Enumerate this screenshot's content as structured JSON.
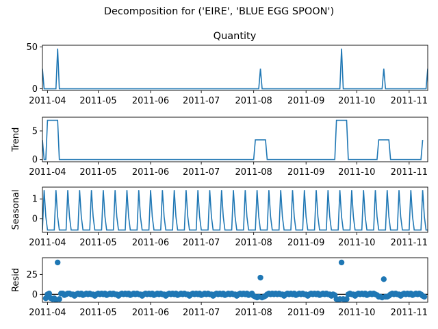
{
  "chart_data": {
    "type": "line",
    "title": "Decomposition for ('EIRE', 'BLUE EGG  SPOON')",
    "x_range": [
      "2011-03-29",
      "2011-11-12"
    ],
    "x_ticks": [
      "2011-04-01",
      "2011-05-01",
      "2011-06-01",
      "2011-07-01",
      "2011-08-01",
      "2011-09-01",
      "2011-10-01",
      "2011-11-01"
    ],
    "x_tick_labels": [
      "2011-04",
      "2011-05",
      "2011-06",
      "2011-07",
      "2011-08",
      "2011-09",
      "2011-10",
      "2011-11"
    ],
    "panels": [
      {
        "name": "observed",
        "title": "Quantity",
        "ylabel": "",
        "kind": "line",
        "ylim": [
          -2,
          52
        ],
        "yticks": [
          0,
          50
        ],
        "points": [
          [
            "2011-03-29",
            24
          ],
          [
            "2011-03-30",
            0
          ],
          [
            "2011-04-06",
            0
          ],
          [
            "2011-04-07",
            48
          ],
          [
            "2011-04-08",
            0
          ],
          [
            "2011-08-04",
            0
          ],
          [
            "2011-08-05",
            24
          ],
          [
            "2011-08-06",
            0
          ],
          [
            "2011-09-21",
            0
          ],
          [
            "2011-09-22",
            48
          ],
          [
            "2011-09-23",
            0
          ],
          [
            "2011-10-16",
            0
          ],
          [
            "2011-10-17",
            24
          ],
          [
            "2011-10-18",
            0
          ],
          [
            "2011-11-11",
            0
          ],
          [
            "2011-11-12",
            24
          ]
        ]
      },
      {
        "name": "trend",
        "title": "",
        "ylabel": "Trend",
        "kind": "line",
        "ylim": [
          -0.4,
          7.4
        ],
        "yticks": [
          0,
          5
        ],
        "points": [
          [
            "2011-03-29",
            3.43
          ],
          [
            "2011-03-30",
            0
          ],
          [
            "2011-03-31",
            0
          ],
          [
            "2011-04-01",
            6.86
          ],
          [
            "2011-04-07",
            6.86
          ],
          [
            "2011-04-08",
            0
          ],
          [
            "2011-08-01",
            0
          ],
          [
            "2011-08-02",
            3.43
          ],
          [
            "2011-08-08",
            3.43
          ],
          [
            "2011-08-09",
            0
          ],
          [
            "2011-09-18",
            0
          ],
          [
            "2011-09-19",
            6.86
          ],
          [
            "2011-09-25",
            6.86
          ],
          [
            "2011-09-26",
            0
          ],
          [
            "2011-10-13",
            0
          ],
          [
            "2011-10-14",
            3.43
          ],
          [
            "2011-10-20",
            3.43
          ],
          [
            "2011-10-21",
            0
          ],
          [
            "2011-11-08",
            0
          ],
          [
            "2011-11-09",
            3.43
          ]
        ]
      },
      {
        "name": "seasonal",
        "title": "",
        "ylabel": "Seasonal",
        "kind": "line",
        "ylim": [
          -0.7,
          1.6
        ],
        "yticks": [
          0,
          1
        ],
        "period_days": 7,
        "pattern": [
          -0.58,
          1.45,
          0.1,
          -0.58,
          -0.58,
          -0.58,
          -0.58
        ],
        "start": "2011-03-29",
        "end": "2011-11-12"
      },
      {
        "name": "resid",
        "title": "",
        "ylabel": "Resid",
        "kind": "scatter",
        "ylim": [
          -10,
          46
        ],
        "yticks": [
          0,
          25
        ],
        "zero_line": true,
        "points": [
          [
            "2011-03-31",
            -5
          ],
          [
            "2011-04-01",
            0
          ],
          [
            "2011-04-02",
            1
          ],
          [
            "2011-04-03",
            -5
          ],
          [
            "2011-04-04",
            -6
          ],
          [
            "2011-04-05",
            -5
          ],
          [
            "2011-04-06",
            -7
          ],
          [
            "2011-04-07",
            40
          ],
          [
            "2011-04-08",
            -6
          ],
          [
            "2011-04-09",
            1
          ],
          [
            "2011-04-10",
            1
          ],
          [
            "2011-04-11",
            -1
          ],
          [
            "2011-04-12",
            0
          ],
          [
            "2011-04-13",
            1
          ],
          [
            "2011-04-14",
            1
          ],
          [
            "2011-04-15",
            0
          ],
          [
            "2011-04-16",
            0
          ],
          [
            "2011-04-17",
            -2
          ],
          [
            "2011-04-18",
            0
          ],
          [
            "2011-04-19",
            1
          ],
          [
            "2011-04-20",
            0
          ],
          [
            "2011-04-21",
            1
          ],
          [
            "2011-04-22",
            -1
          ],
          [
            "2011-04-23",
            0
          ],
          [
            "2011-04-24",
            1
          ],
          [
            "2011-04-25",
            0
          ],
          [
            "2011-04-26",
            1
          ],
          [
            "2011-04-27",
            0
          ],
          [
            "2011-04-28",
            0
          ],
          [
            "2011-04-29",
            -2
          ],
          [
            "2011-04-30",
            0
          ],
          [
            "2011-05-01",
            1
          ],
          [
            "2011-05-02",
            0
          ],
          [
            "2011-05-03",
            1
          ],
          [
            "2011-05-04",
            0
          ],
          [
            "2011-05-05",
            1
          ],
          [
            "2011-05-06",
            -1
          ],
          [
            "2011-05-07",
            0
          ],
          [
            "2011-05-08",
            1
          ],
          [
            "2011-05-09",
            0
          ],
          [
            "2011-05-10",
            1
          ],
          [
            "2011-05-11",
            0
          ],
          [
            "2011-05-12",
            0
          ],
          [
            "2011-05-13",
            -2
          ],
          [
            "2011-05-14",
            0
          ],
          [
            "2011-05-15",
            1
          ],
          [
            "2011-05-16",
            0
          ],
          [
            "2011-05-17",
            1
          ],
          [
            "2011-05-18",
            0
          ],
          [
            "2011-05-19",
            1
          ],
          [
            "2011-05-20",
            -1
          ],
          [
            "2011-05-21",
            0
          ],
          [
            "2011-05-22",
            1
          ],
          [
            "2011-05-23",
            0
          ],
          [
            "2011-05-24",
            1
          ],
          [
            "2011-05-25",
            0
          ],
          [
            "2011-05-26",
            0
          ],
          [
            "2011-05-27",
            -2
          ],
          [
            "2011-05-28",
            0
          ],
          [
            "2011-05-29",
            1
          ],
          [
            "2011-05-30",
            0
          ],
          [
            "2011-05-31",
            1
          ],
          [
            "2011-06-01",
            0
          ],
          [
            "2011-06-02",
            1
          ],
          [
            "2011-06-03",
            -1
          ],
          [
            "2011-06-04",
            0
          ],
          [
            "2011-06-05",
            1
          ],
          [
            "2011-06-06",
            0
          ],
          [
            "2011-06-07",
            1
          ],
          [
            "2011-06-08",
            0
          ],
          [
            "2011-06-09",
            0
          ],
          [
            "2011-06-10",
            -2
          ],
          [
            "2011-06-11",
            0
          ],
          [
            "2011-06-12",
            1
          ],
          [
            "2011-06-13",
            0
          ],
          [
            "2011-06-14",
            1
          ],
          [
            "2011-06-15",
            0
          ],
          [
            "2011-06-16",
            1
          ],
          [
            "2011-06-17",
            -1
          ],
          [
            "2011-06-18",
            0
          ],
          [
            "2011-06-19",
            1
          ],
          [
            "2011-06-20",
            0
          ],
          [
            "2011-06-21",
            1
          ],
          [
            "2011-06-22",
            0
          ],
          [
            "2011-06-23",
            0
          ],
          [
            "2011-06-24",
            -2
          ],
          [
            "2011-06-25",
            0
          ],
          [
            "2011-06-26",
            1
          ],
          [
            "2011-06-27",
            0
          ],
          [
            "2011-06-28",
            1
          ],
          [
            "2011-06-29",
            0
          ],
          [
            "2011-06-30",
            1
          ],
          [
            "2011-07-01",
            -1
          ],
          [
            "2011-07-02",
            0
          ],
          [
            "2011-07-03",
            1
          ],
          [
            "2011-07-04",
            0
          ],
          [
            "2011-07-05",
            1
          ],
          [
            "2011-07-06",
            0
          ],
          [
            "2011-07-07",
            0
          ],
          [
            "2011-07-08",
            -2
          ],
          [
            "2011-07-09",
            0
          ],
          [
            "2011-07-10",
            1
          ],
          [
            "2011-07-11",
            0
          ],
          [
            "2011-07-12",
            1
          ],
          [
            "2011-07-13",
            0
          ],
          [
            "2011-07-14",
            1
          ],
          [
            "2011-07-15",
            -1
          ],
          [
            "2011-07-16",
            0
          ],
          [
            "2011-07-17",
            1
          ],
          [
            "2011-07-18",
            0
          ],
          [
            "2011-07-19",
            1
          ],
          [
            "2011-07-20",
            0
          ],
          [
            "2011-07-21",
            0
          ],
          [
            "2011-07-22",
            -2
          ],
          [
            "2011-07-23",
            0
          ],
          [
            "2011-07-24",
            1
          ],
          [
            "2011-07-25",
            0
          ],
          [
            "2011-07-26",
            1
          ],
          [
            "2011-07-27",
            0
          ],
          [
            "2011-07-28",
            1
          ],
          [
            "2011-07-29",
            -1
          ],
          [
            "2011-07-30",
            0
          ],
          [
            "2011-07-31",
            1
          ],
          [
            "2011-08-01",
            -2
          ],
          [
            "2011-08-02",
            -3
          ],
          [
            "2011-08-03",
            -4
          ],
          [
            "2011-08-04",
            -3
          ],
          [
            "2011-08-05",
            21
          ],
          [
            "2011-08-06",
            -4
          ],
          [
            "2011-08-07",
            -3
          ],
          [
            "2011-08-08",
            -2
          ],
          [
            "2011-08-09",
            0
          ],
          [
            "2011-08-10",
            1
          ],
          [
            "2011-08-11",
            0
          ],
          [
            "2011-08-12",
            1
          ],
          [
            "2011-08-13",
            0
          ],
          [
            "2011-08-14",
            1
          ],
          [
            "2011-08-15",
            0
          ],
          [
            "2011-08-16",
            1
          ],
          [
            "2011-08-17",
            0
          ],
          [
            "2011-08-18",
            0
          ],
          [
            "2011-08-19",
            -2
          ],
          [
            "2011-08-20",
            0
          ],
          [
            "2011-08-21",
            1
          ],
          [
            "2011-08-22",
            0
          ],
          [
            "2011-08-23",
            1
          ],
          [
            "2011-08-24",
            0
          ],
          [
            "2011-08-25",
            1
          ],
          [
            "2011-08-26",
            -1
          ],
          [
            "2011-08-27",
            0
          ],
          [
            "2011-08-28",
            1
          ],
          [
            "2011-08-29",
            0
          ],
          [
            "2011-08-30",
            1
          ],
          [
            "2011-08-31",
            0
          ],
          [
            "2011-09-01",
            0
          ],
          [
            "2011-09-02",
            -2
          ],
          [
            "2011-09-03",
            0
          ],
          [
            "2011-09-04",
            1
          ],
          [
            "2011-09-05",
            0
          ],
          [
            "2011-09-06",
            1
          ],
          [
            "2011-09-07",
            0
          ],
          [
            "2011-09-08",
            1
          ],
          [
            "2011-09-09",
            -1
          ],
          [
            "2011-09-10",
            0
          ],
          [
            "2011-09-11",
            1
          ],
          [
            "2011-09-12",
            0
          ],
          [
            "2011-09-13",
            1
          ],
          [
            "2011-09-14",
            0
          ],
          [
            "2011-09-15",
            0
          ],
          [
            "2011-09-16",
            -2
          ],
          [
            "2011-09-17",
            0
          ],
          [
            "2011-09-18",
            -1
          ],
          [
            "2011-09-19",
            -6
          ],
          [
            "2011-09-20",
            -7
          ],
          [
            "2011-09-21",
            -6
          ],
          [
            "2011-09-22",
            40
          ],
          [
            "2011-09-23",
            -6
          ],
          [
            "2011-09-24",
            -7
          ],
          [
            "2011-09-25",
            -6
          ],
          [
            "2011-09-26",
            0
          ],
          [
            "2011-09-27",
            1
          ],
          [
            "2011-09-28",
            0
          ],
          [
            "2011-09-29",
            0
          ],
          [
            "2011-09-30",
            -2
          ],
          [
            "2011-10-01",
            0
          ],
          [
            "2011-10-02",
            1
          ],
          [
            "2011-10-03",
            0
          ],
          [
            "2011-10-04",
            1
          ],
          [
            "2011-10-05",
            0
          ],
          [
            "2011-10-06",
            1
          ],
          [
            "2011-10-07",
            -1
          ],
          [
            "2011-10-08",
            0
          ],
          [
            "2011-10-09",
            1
          ],
          [
            "2011-10-10",
            0
          ],
          [
            "2011-10-11",
            1
          ],
          [
            "2011-10-12",
            0
          ],
          [
            "2011-10-13",
            -1
          ],
          [
            "2011-10-14",
            -3
          ],
          [
            "2011-10-15",
            -3
          ],
          [
            "2011-10-16",
            -4
          ],
          [
            "2011-10-17",
            19
          ],
          [
            "2011-10-18",
            -3
          ],
          [
            "2011-10-19",
            -3
          ],
          [
            "2011-10-20",
            -2
          ],
          [
            "2011-10-21",
            0
          ],
          [
            "2011-10-22",
            1
          ],
          [
            "2011-10-23",
            0
          ],
          [
            "2011-10-24",
            1
          ],
          [
            "2011-10-25",
            0
          ],
          [
            "2011-10-26",
            0
          ],
          [
            "2011-10-27",
            -2
          ],
          [
            "2011-10-28",
            0
          ],
          [
            "2011-10-29",
            1
          ],
          [
            "2011-10-30",
            0
          ],
          [
            "2011-10-31",
            1
          ],
          [
            "2011-11-01",
            0
          ],
          [
            "2011-11-02",
            1
          ],
          [
            "2011-11-03",
            -1
          ],
          [
            "2011-11-04",
            0
          ],
          [
            "2011-11-05",
            1
          ],
          [
            "2011-11-06",
            0
          ],
          [
            "2011-11-07",
            1
          ],
          [
            "2011-11-08",
            0
          ],
          [
            "2011-11-09",
            -2
          ],
          [
            "2011-11-10",
            -3
          ]
        ]
      }
    ],
    "grid": false,
    "legend": "none",
    "colors": {
      "series": "#1f77b4",
      "axis": "#000000"
    }
  }
}
